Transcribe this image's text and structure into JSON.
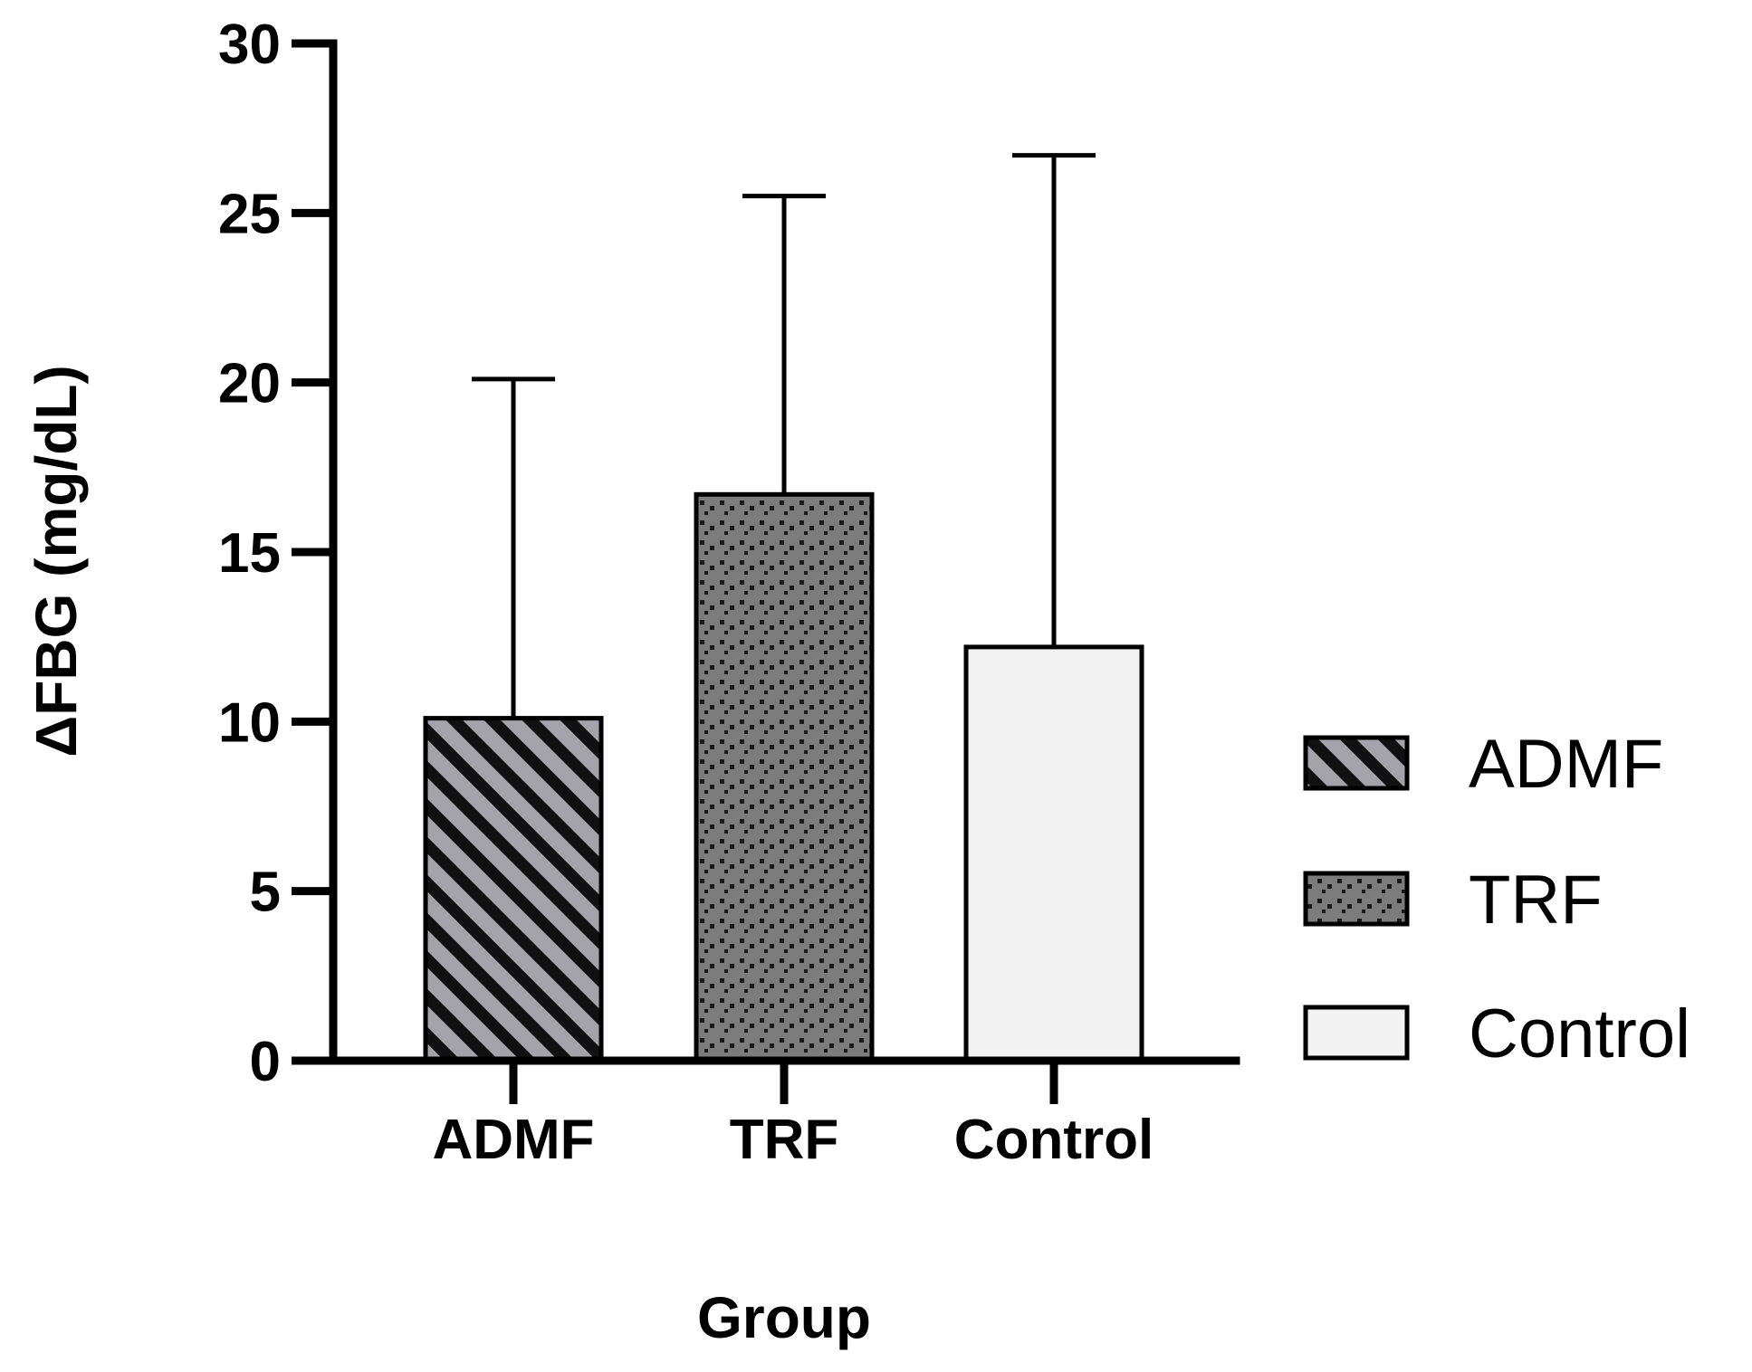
{
  "chart_data": {
    "type": "bar",
    "title": "",
    "xlabel": "Group",
    "ylabel": "ΔFBG (mg/dL)",
    "ylim": [
      0,
      30
    ],
    "yticks": [
      "0",
      "5",
      "10",
      "15",
      "20",
      "25",
      "30"
    ],
    "categories": [
      "ADMF",
      "TRF",
      "Control"
    ],
    "values": [
      10.1,
      16.7,
      12.2
    ],
    "error_upper": [
      20.1,
      25.5,
      26.7
    ],
    "grid": false,
    "legend_position": "right",
    "legend": [
      "ADMF",
      "TRF",
      "Control"
    ],
    "fills": [
      "#a3a3a9",
      "#7a7a7a",
      "#f2f2f2"
    ],
    "patterns": [
      "diagonal-stripes",
      "dots",
      "solid"
    ]
  }
}
